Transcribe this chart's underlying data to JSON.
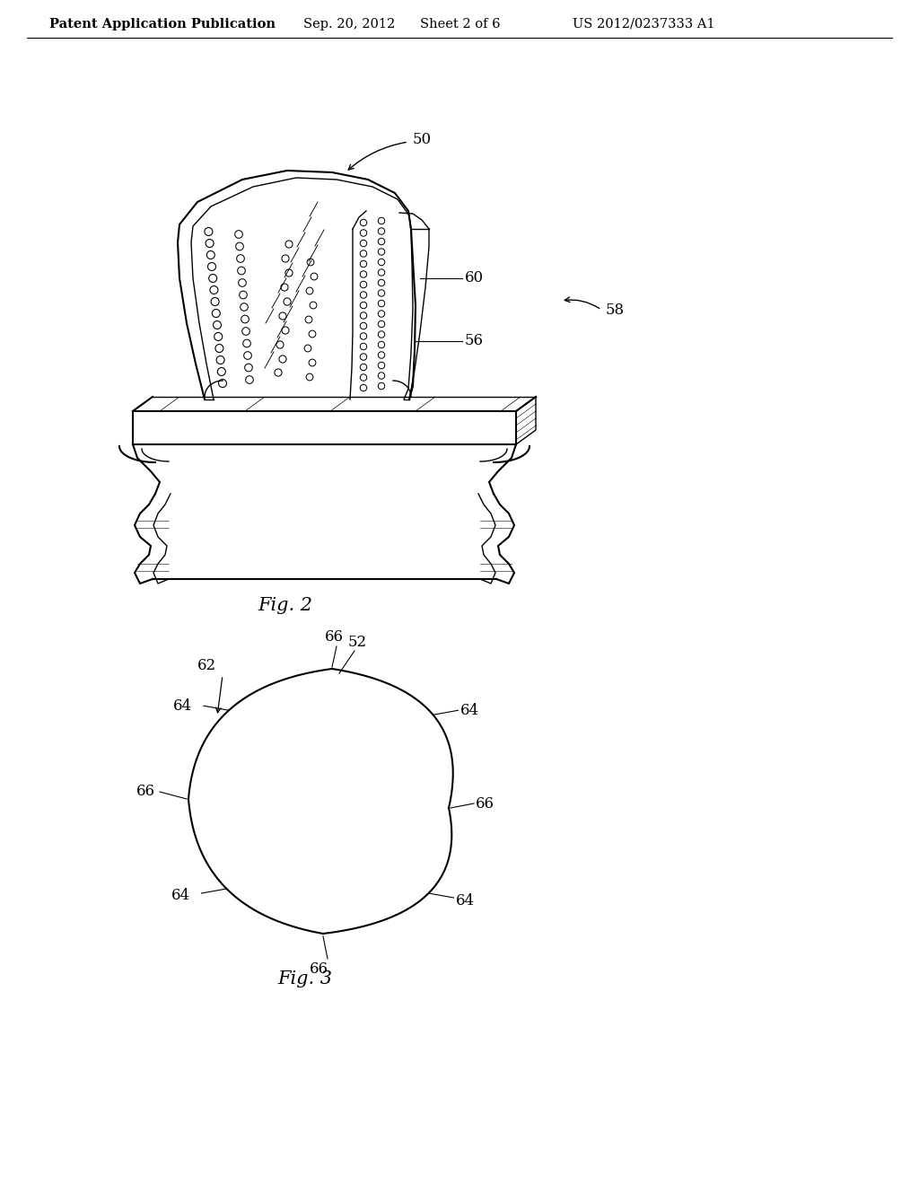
{
  "bg_color": "#ffffff",
  "header_text": "Patent Application Publication",
  "header_date": "Sep. 20, 2012",
  "header_sheet": "Sheet 2 of 6",
  "header_patent": "US 2012/0237333 A1",
  "fig2_label": "Fig. 2",
  "fig3_label": "Fig. 3",
  "label_50": "50",
  "label_56": "56",
  "label_58": "58",
  "label_60": "60",
  "label_62": "62",
  "label_52": "52",
  "label_64": "64",
  "label_66": "66",
  "line_color": "#000000"
}
